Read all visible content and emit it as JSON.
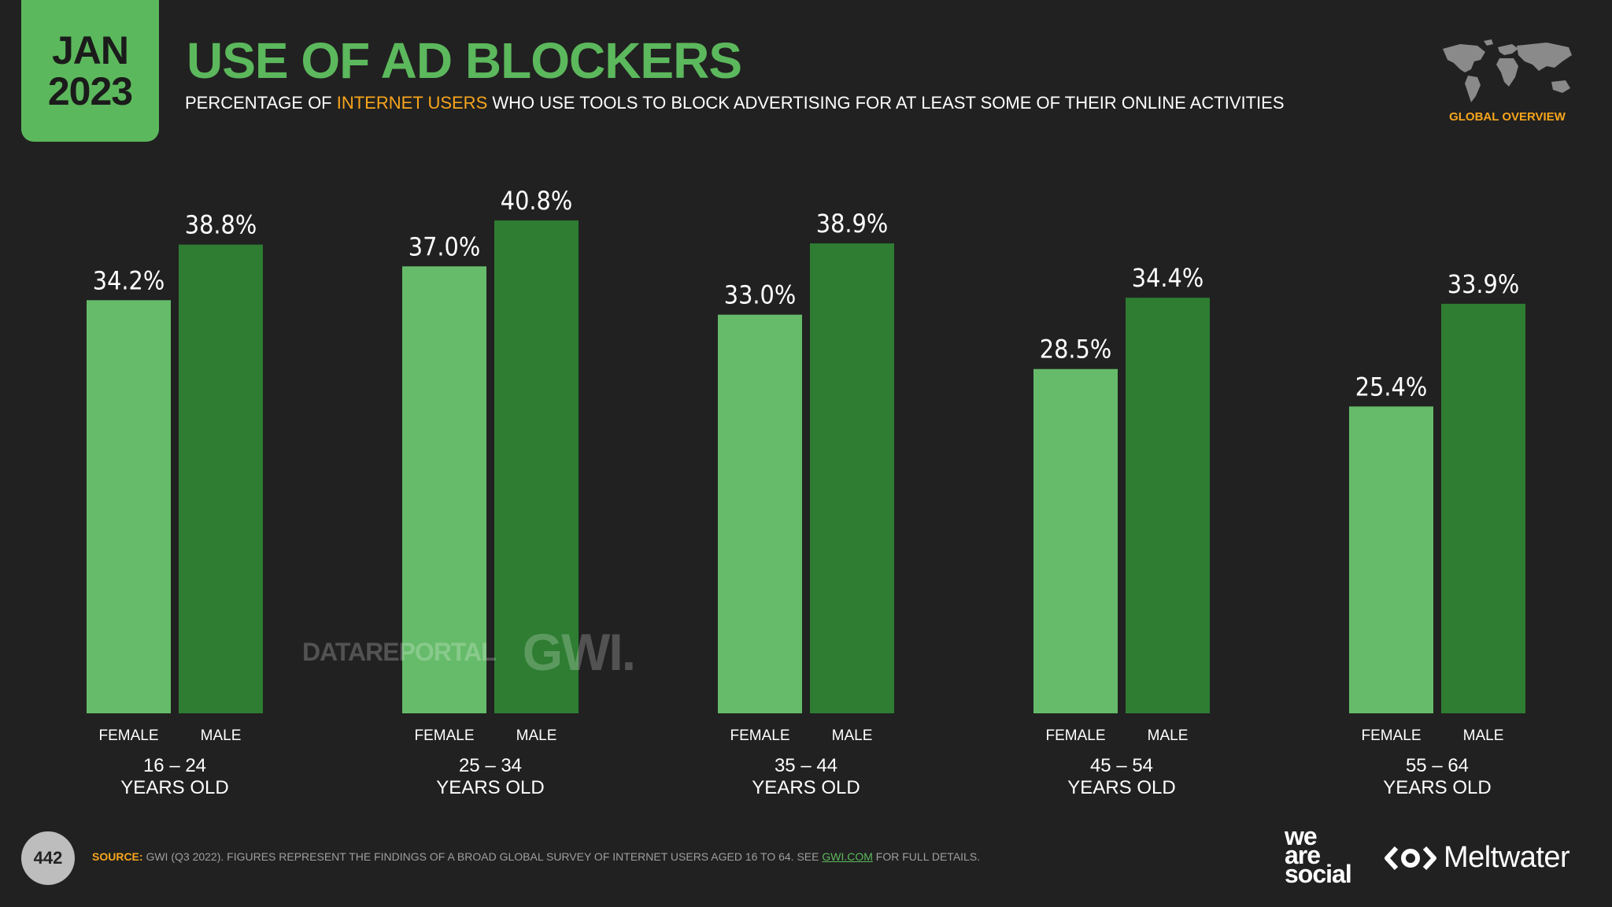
{
  "badge": {
    "month": "JAN",
    "year": "2023"
  },
  "header": {
    "title": "USE OF AD BLOCKERS",
    "subtitle_pre": "PERCENTAGE OF ",
    "subtitle_highlight": "INTERNET USERS",
    "subtitle_post": " WHO USE TOOLS TO BLOCK ADVERTISING FOR AT LEAST SOME OF THEIR ONLINE ACTIVITIES"
  },
  "global_overview": {
    "label": "GLOBAL OVERVIEW"
  },
  "colors": {
    "background": "#212121",
    "female": "#66bb6a",
    "male": "#2e7d32",
    "accent_green": "#5cb85c",
    "accent_orange": "#f7a51c"
  },
  "chart_data": {
    "type": "bar",
    "title": "USE OF AD BLOCKERS",
    "unit": "%",
    "ylim": [
      0,
      40.8
    ],
    "grid": false,
    "categories": [
      {
        "range": "16 – 24",
        "suffix": "YEARS OLD"
      },
      {
        "range": "25 – 34",
        "suffix": "YEARS OLD"
      },
      {
        "range": "35 – 44",
        "suffix": "YEARS OLD"
      },
      {
        "range": "45 – 54",
        "suffix": "YEARS OLD"
      },
      {
        "range": "55 – 64",
        "suffix": "YEARS OLD"
      }
    ],
    "series": [
      {
        "name": "FEMALE",
        "values": [
          34.2,
          37.0,
          33.0,
          28.5,
          25.4
        ],
        "labels": [
          "34.2%",
          "37.0%",
          "33.0%",
          "28.5%",
          "25.4%"
        ]
      },
      {
        "name": "MALE",
        "values": [
          38.8,
          40.8,
          38.9,
          34.4,
          33.9
        ],
        "labels": [
          "38.8%",
          "40.8%",
          "38.9%",
          "34.4%",
          "33.9%"
        ]
      }
    ]
  },
  "watermark": {
    "datareportal": "DATAREPORTAL",
    "gwi": "GWI."
  },
  "footer": {
    "page_number": "442",
    "source_label": "SOURCE:",
    "source_text": " GWI (Q3 2022). FIGURES REPRESENT THE FINDINGS OF A BROAD GLOBAL SURVEY OF INTERNET USERS AGED 16 TO 64. SEE ",
    "source_link": "GWI.COM",
    "source_tail": " FOR FULL DETAILS.",
    "we_are_social": [
      "we",
      "are",
      "social"
    ],
    "meltwater": "Meltwater"
  }
}
